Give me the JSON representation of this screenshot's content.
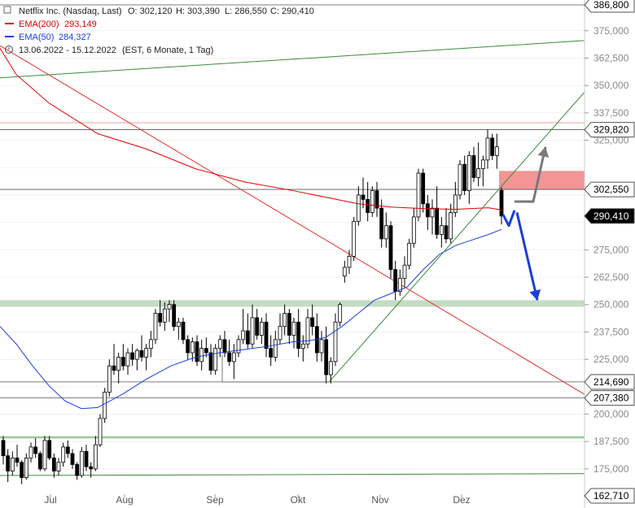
{
  "header": {
    "title": "Netflix Inc. (Nasdaq, Last)",
    "open": "O: 302,120",
    "high": "H: 303,390",
    "low": "L: 286,550",
    "close": "C: 290,410",
    "ema200_label": "EMA(200)",
    "ema200_value": "293,149",
    "ema50_label": "EMA(50)",
    "ema50_value": "284,327",
    "range": "13.06.2022 - 15.12.2022",
    "settings": "(EST, 6 Monate, 1 Tag)"
  },
  "colors": {
    "ema200": "#e00000",
    "ema50": "#1a3fd6",
    "trendline_green": "#3a8a3a",
    "trendline_red": "#e03030",
    "support_zone": "#c4dcc4",
    "resistance_zone": "#f28a8a",
    "arrow_blue": "#1a3fd6",
    "arrow_grey": "#7a7a7a"
  },
  "chart_data": {
    "type": "candlestick",
    "ylim": [
      162.71,
      386.8
    ],
    "yticks": [
      175,
      187.5,
      200,
      212.5,
      225,
      237.5,
      250,
      262.5,
      275,
      287.5,
      300,
      312.5,
      325,
      337.5,
      350,
      362.5,
      375
    ],
    "ytick_labels": [
      "175,000",
      "187,500",
      "200,000",
      "",
      "225,000",
      "237,500",
      "250,000",
      "262,500",
      "275,000",
      "",
      "",
      "",
      "325,000",
      "337,500",
      "350,000",
      "362,500",
      "375,000"
    ],
    "xlabels": [
      "Jul",
      "Aug",
      "Sep",
      "Okt",
      "Nov",
      "Dez"
    ],
    "price_tags": [
      {
        "value": 386.8,
        "label": "386,800",
        "style": "dark"
      },
      {
        "value": 329.82,
        "label": "329,820",
        "style": "dark"
      },
      {
        "value": 302.55,
        "label": "302,550",
        "style": "dark"
      },
      {
        "value": 290.41,
        "label": "290,410",
        "style": "current"
      },
      {
        "value": 214.69,
        "label": "214,690",
        "style": "dark"
      },
      {
        "value": 207.38,
        "label": "207,380",
        "style": "dark"
      },
      {
        "value": 162.71,
        "label": "162,710",
        "style": "dark"
      }
    ],
    "horizontal_levels": [
      386.8,
      329.82,
      302.55,
      214.69,
      207.38
    ],
    "zones": [
      {
        "name": "support",
        "from": 249,
        "to": 252,
        "extent": "full"
      },
      {
        "name": "green-band",
        "from": 188.9,
        "to": 189.9,
        "extent": "full"
      },
      {
        "name": "resistance",
        "from": 302.55,
        "to": 311,
        "extent": "right"
      }
    ],
    "candles_ohlc": [
      [
        188,
        190,
        177,
        181
      ],
      [
        181,
        184,
        169,
        174
      ],
      [
        174,
        183,
        172,
        180
      ],
      [
        180,
        186,
        176,
        178
      ],
      [
        178,
        179,
        168,
        171
      ],
      [
        171,
        182,
        170,
        180
      ],
      [
        180,
        187,
        178,
        185
      ],
      [
        185,
        189,
        180,
        182
      ],
      [
        182,
        183,
        174,
        175
      ],
      [
        175,
        190,
        174,
        188
      ],
      [
        188,
        190,
        179,
        180
      ],
      [
        180,
        182,
        171,
        174
      ],
      [
        174,
        180,
        172,
        178
      ],
      [
        178,
        187,
        176,
        185
      ],
      [
        185,
        188,
        180,
        182
      ],
      [
        182,
        184,
        175,
        177
      ],
      [
        177,
        178,
        170,
        172
      ],
      [
        172,
        185,
        171,
        183
      ],
      [
        183,
        186,
        174,
        176
      ],
      [
        176,
        178,
        171,
        175
      ],
      [
        175,
        190,
        174,
        186
      ],
      [
        186,
        200,
        185,
        198
      ],
      [
        198,
        212,
        196,
        210
      ],
      [
        210,
        225,
        208,
        222
      ],
      [
        222,
        232,
        218,
        220
      ],
      [
        220,
        228,
        214,
        226
      ],
      [
        226,
        232,
        220,
        222
      ],
      [
        222,
        230,
        218,
        228
      ],
      [
        228,
        232,
        222,
        225
      ],
      [
        225,
        230,
        220,
        229
      ],
      [
        229,
        236,
        224,
        226
      ],
      [
        226,
        232,
        220,
        230
      ],
      [
        230,
        238,
        226,
        234
      ],
      [
        234,
        248,
        232,
        246
      ],
      [
        246,
        252,
        240,
        242
      ],
      [
        242,
        251,
        238,
        248
      ],
      [
        248,
        252,
        242,
        250
      ],
      [
        250,
        252,
        238,
        240
      ],
      [
        240,
        244,
        234,
        242
      ],
      [
        242,
        244,
        232,
        234
      ],
      [
        234,
        236,
        225,
        228
      ],
      [
        228,
        235,
        224,
        233
      ],
      [
        233,
        236,
        222,
        224
      ],
      [
        224,
        234,
        220,
        230
      ],
      [
        230,
        235,
        226,
        228
      ],
      [
        228,
        232,
        218,
        220
      ],
      [
        220,
        232,
        218,
        230
      ],
      [
        230,
        236,
        226,
        234
      ],
      [
        234,
        238,
        226,
        228
      ],
      [
        228,
        234,
        222,
        224
      ],
      [
        224,
        232,
        216,
        228
      ],
      [
        228,
        236,
        226,
        234
      ],
      [
        234,
        248,
        232,
        238
      ],
      [
        238,
        246,
        230,
        232
      ],
      [
        232,
        250,
        230,
        244
      ],
      [
        244,
        248,
        234,
        236
      ],
      [
        236,
        244,
        232,
        242
      ],
      [
        242,
        246,
        226,
        230
      ],
      [
        230,
        236,
        222,
        226
      ],
      [
        226,
        238,
        224,
        234
      ],
      [
        234,
        246,
        232,
        240
      ],
      [
        240,
        250,
        236,
        246
      ],
      [
        246,
        248,
        232,
        236
      ],
      [
        236,
        244,
        230,
        242
      ],
      [
        242,
        248,
        226,
        230
      ],
      [
        230,
        236,
        224,
        232
      ],
      [
        232,
        248,
        230,
        244
      ],
      [
        244,
        250,
        236,
        240
      ],
      [
        240,
        246,
        224,
        228
      ],
      [
        228,
        238,
        224,
        234
      ],
      [
        234,
        240,
        214,
        218
      ],
      [
        218,
        226,
        214,
        224
      ],
      [
        224,
        246,
        222,
        242
      ],
      [
        242,
        251,
        240,
        250
      ],
      [
        263,
        270,
        260,
        267
      ],
      [
        267,
        275,
        264,
        272
      ],
      [
        272,
        290,
        270,
        288
      ],
      [
        288,
        304,
        286,
        300
      ],
      [
        300,
        308,
        294,
        298
      ],
      [
        298,
        306,
        288,
        292
      ],
      [
        292,
        304,
        290,
        302
      ],
      [
        302,
        306,
        290,
        294
      ],
      [
        294,
        298,
        276,
        280
      ],
      [
        280,
        292,
        276,
        286
      ],
      [
        286,
        288,
        262,
        266
      ],
      [
        266,
        270,
        252,
        256
      ],
      [
        256,
        266,
        254,
        262
      ],
      [
        262,
        272,
        258,
        268
      ],
      [
        268,
        280,
        266,
        278
      ],
      [
        278,
        294,
        276,
        290
      ],
      [
        290,
        312,
        288,
        310
      ],
      [
        310,
        312,
        292,
        296
      ],
      [
        296,
        300,
        284,
        290
      ],
      [
        290,
        298,
        282,
        294
      ],
      [
        294,
        304,
        280,
        282
      ],
      [
        282,
        290,
        276,
        286
      ],
      [
        286,
        294,
        278,
        280
      ],
      [
        280,
        296,
        278,
        292
      ],
      [
        292,
        306,
        290,
        300
      ],
      [
        300,
        316,
        298,
        314
      ],
      [
        314,
        318,
        300,
        302
      ],
      [
        302,
        320,
        296,
        318
      ],
      [
        318,
        322,
        306,
        308
      ],
      [
        308,
        324,
        304,
        312
      ],
      [
        312,
        318,
        304,
        316
      ],
      [
        316,
        330,
        312,
        326
      ],
      [
        326,
        328,
        316,
        318
      ],
      [
        318,
        328,
        312,
        322
      ],
      [
        302.12,
        303.39,
        286.55,
        290.41
      ]
    ],
    "ema200": [
      [
        0,
        367
      ],
      [
        20,
        355
      ],
      [
        60,
        342
      ],
      [
        120,
        328
      ],
      [
        180,
        321
      ],
      [
        240,
        312
      ],
      [
        300,
        306
      ],
      [
        360,
        302
      ],
      [
        400,
        299
      ],
      [
        440,
        296
      ],
      [
        480,
        294.5
      ],
      [
        520,
        293.8
      ],
      [
        560,
        293.5
      ],
      [
        600,
        294.2
      ],
      [
        616,
        293.149
      ]
    ],
    "ema50": [
      [
        0,
        240
      ],
      [
        20,
        232
      ],
      [
        40,
        222
      ],
      [
        60,
        213
      ],
      [
        80,
        206
      ],
      [
        100,
        202.5
      ],
      [
        120,
        203
      ],
      [
        150,
        209
      ],
      [
        180,
        216
      ],
      [
        210,
        222
      ],
      [
        240,
        226
      ],
      [
        270,
        228
      ],
      [
        300,
        229.5
      ],
      [
        330,
        231
      ],
      [
        360,
        233
      ],
      [
        380,
        233.5
      ],
      [
        400,
        235
      ],
      [
        420,
        240
      ],
      [
        440,
        246
      ],
      [
        460,
        252
      ],
      [
        480,
        255
      ],
      [
        500,
        258
      ],
      [
        520,
        266
      ],
      [
        540,
        273
      ],
      [
        560,
        277
      ],
      [
        580,
        279.5
      ],
      [
        600,
        282
      ],
      [
        616,
        284.327
      ]
    ],
    "trendlines": [
      {
        "color": "green",
        "points": [
          [
            0,
            353.5
          ],
          [
            718,
            370.5
          ]
        ]
      },
      {
        "color": "green",
        "points": [
          [
            0,
            172
          ],
          [
            718,
            172.8
          ]
        ]
      },
      {
        "color": "green",
        "points": [
          [
            405,
            215
          ],
          [
            718,
            347
          ]
        ]
      },
      {
        "color": "red",
        "points": [
          [
            0,
            368.2
          ],
          [
            718,
            209
          ]
        ]
      }
    ],
    "arrows": [
      {
        "color": "grey",
        "points": [
          [
            632,
            297
          ],
          [
            655,
            297
          ],
          [
            670,
            322
          ]
        ]
      },
      {
        "color": "blue",
        "points": [
          [
            635,
            292
          ],
          [
            660,
            252
          ]
        ]
      },
      {
        "color": "blue",
        "points": [
          [
            618,
            291
          ],
          [
            625,
            286
          ],
          [
            632,
            293
          ]
        ]
      }
    ]
  }
}
